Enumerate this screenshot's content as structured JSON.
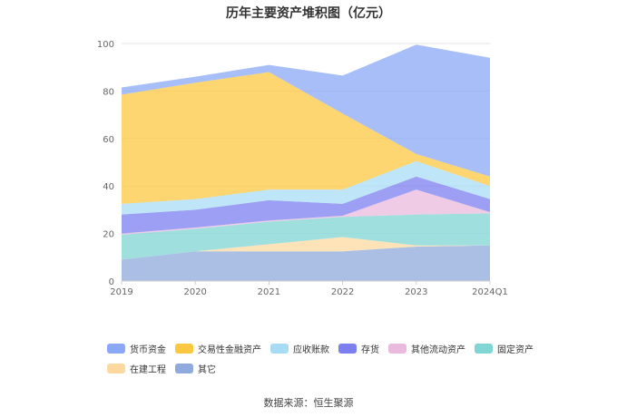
{
  "chart_data": {
    "type": "area",
    "stacked": true,
    "title": "历年主要资产堆积图（亿元）",
    "categories": [
      "2019",
      "2020",
      "2021",
      "2022",
      "2023",
      "2024Q1"
    ],
    "ylim": [
      0,
      100
    ],
    "yticks": [
      "0",
      "20",
      "40",
      "60",
      "80",
      "100"
    ],
    "grid": true,
    "legend_position": "bottom",
    "series": [
      {
        "name": "其它",
        "color": "#8faadc",
        "values": [
          9,
          12.5,
          12.5,
          12.5,
          14.5,
          15
        ]
      },
      {
        "name": "在建工程",
        "color": "#fdd9a0",
        "values": [
          0,
          0,
          3,
          6,
          0.5,
          0
        ]
      },
      {
        "name": "固定资产",
        "color": "#7fd6d4",
        "values": [
          10.5,
          9.5,
          9.5,
          8.5,
          13,
          13.5
        ]
      },
      {
        "name": "其他流动资产",
        "color": "#eab9de",
        "values": [
          0.5,
          0.5,
          0.5,
          0.5,
          10.5,
          0.5
        ]
      },
      {
        "name": "存货",
        "color": "#7b7ff0",
        "values": [
          8,
          7.5,
          8.5,
          5,
          5.5,
          5.5
        ]
      },
      {
        "name": "应收账款",
        "color": "#a8dcf5",
        "values": [
          4.5,
          4.5,
          4.5,
          6,
          6.5,
          5.5
        ]
      },
      {
        "name": "交易性金融资产",
        "color": "#fcc741",
        "values": [
          46,
          49,
          49.5,
          32,
          3,
          4
        ]
      },
      {
        "name": "货币资金",
        "color": "#8aa8f7",
        "values": [
          3,
          2.5,
          3,
          16,
          46,
          50
        ]
      }
    ]
  },
  "legend_order": [
    "货币资金",
    "交易性金融资产",
    "应收账款",
    "存货",
    "其他流动资产",
    "固定资产",
    "在建工程",
    "其它"
  ],
  "source": "数据来源：恒生聚源"
}
